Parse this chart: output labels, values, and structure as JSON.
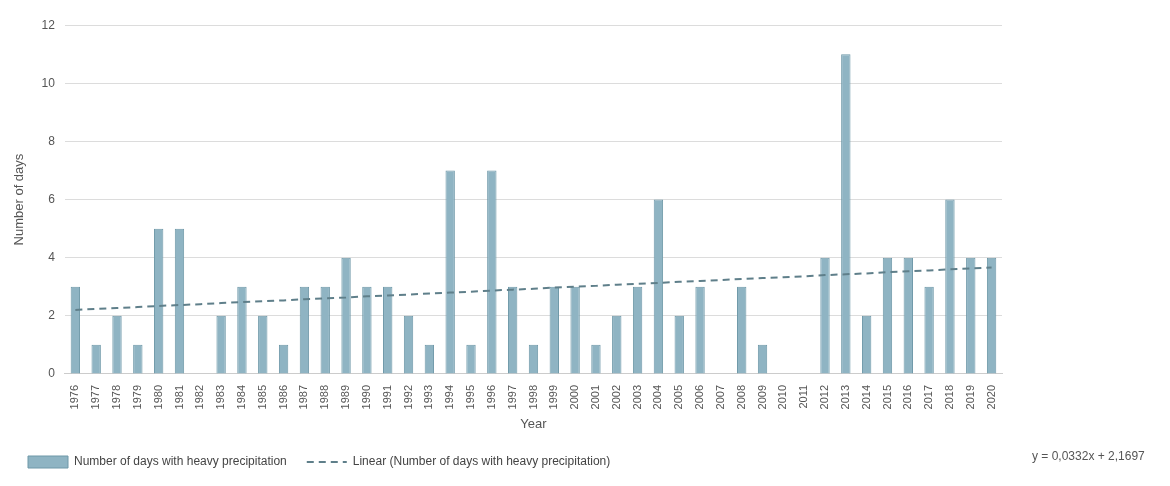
{
  "chart_data": {
    "type": "bar",
    "xlabel": "Year",
    "ylabel": "Number of days",
    "categories": [
      "1976",
      "1977",
      "1978",
      "1979",
      "1980",
      "1981",
      "1982",
      "1983",
      "1984",
      "1985",
      "1986",
      "1987",
      "1988",
      "1989",
      "1990",
      "1991",
      "1992",
      "1993",
      "1994",
      "1995",
      "1996",
      "1997",
      "1998",
      "1999",
      "2000",
      "2001",
      "2002",
      "2003",
      "2004",
      "2005",
      "2006",
      "2007",
      "2008",
      "2009",
      "2010",
      "2011",
      "2012",
      "2013",
      "2014",
      "2015",
      "2016",
      "2017",
      "2018",
      "2019",
      "2020"
    ],
    "series": [
      {
        "name": "Number of days with heavy precipitation",
        "color": "#8fb4c3",
        "values": [
          3,
          1,
          2,
          1,
          5,
          5,
          0,
          2,
          3,
          2,
          1,
          3,
          3,
          4,
          3,
          3,
          2,
          1,
          7,
          1,
          7,
          3,
          1,
          3,
          3,
          1,
          2,
          3,
          6,
          2,
          3,
          0,
          3,
          1,
          0,
          0,
          4,
          11,
          2,
          4,
          4,
          3,
          6,
          4,
          4
        ]
      },
      {
        "name": "Linear (Number of days with heavy precipitation)",
        "type": "line",
        "color": "#5f7f8a",
        "line_style": "dashed",
        "values": [
          2.2,
          2.24,
          2.27,
          2.3,
          2.34,
          2.37,
          2.4,
          2.44,
          2.47,
          2.5,
          2.53,
          2.57,
          2.6,
          2.63,
          2.67,
          2.7,
          2.73,
          2.77,
          2.8,
          2.83,
          2.87,
          2.9,
          2.93,
          2.97,
          3.0,
          3.03,
          3.07,
          3.1,
          3.13,
          3.17,
          3.2,
          3.23,
          3.27,
          3.3,
          3.33,
          3.36,
          3.4,
          3.43,
          3.46,
          3.5,
          3.53,
          3.56,
          3.6,
          3.63,
          3.66
        ]
      }
    ],
    "ylim": [
      0,
      12
    ],
    "yticks": [
      0,
      2,
      4,
      6,
      8,
      10,
      12
    ],
    "grid": "y",
    "legend": "bottom",
    "annotations": [
      "y = 0,0332x + 2,1697"
    ]
  }
}
